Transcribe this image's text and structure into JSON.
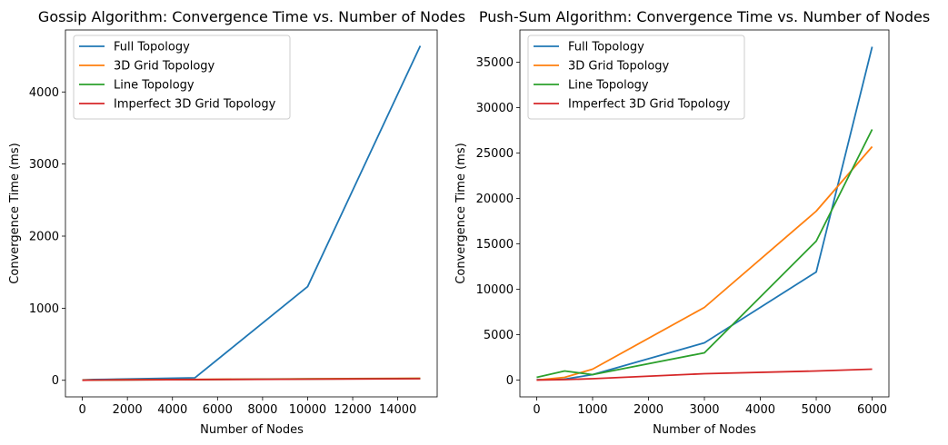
{
  "chart_data": [
    {
      "type": "line",
      "title": "Gossip Algorithm: Convergence Time vs. Number of Nodes",
      "xlabel": "Number of Nodes",
      "ylabel": "Convergence Time (ms)",
      "xlim": [
        -750,
        15750
      ],
      "ylim": [
        -230,
        4860
      ],
      "xticks": [
        0,
        2000,
        4000,
        6000,
        8000,
        10000,
        12000,
        14000
      ],
      "yticks": [
        0,
        1000,
        2000,
        3000,
        4000
      ],
      "grid": false,
      "legend_position": "top-left",
      "series": [
        {
          "name": "Full Topology",
          "color": "#1f77b4",
          "x": [
            0,
            500,
            1000,
            5000,
            10000,
            15000
          ],
          "y": [
            5,
            10,
            12,
            35,
            1300,
            4640
          ]
        },
        {
          "name": "3D Grid Topology",
          "color": "#ff7f0e",
          "x": [
            0,
            500,
            1000,
            5000,
            10000,
            15000
          ],
          "y": [
            2,
            4,
            5,
            12,
            20,
            28
          ]
        },
        {
          "name": "Line Topology",
          "color": "#2ca02c",
          "x": [
            0,
            500,
            1000,
            5000,
            10000,
            15000
          ],
          "y": [
            2,
            3,
            5,
            10,
            18,
            25
          ]
        },
        {
          "name": "Imperfect 3D Grid Topology",
          "color": "#d62728",
          "x": [
            0,
            500,
            1000,
            5000,
            10000,
            15000
          ],
          "y": [
            1,
            3,
            5,
            10,
            16,
            22
          ]
        }
      ]
    },
    {
      "type": "line",
      "title": "Push-Sum Algorithm: Convergence Time vs. Number of Nodes",
      "xlabel": "Number of Nodes",
      "ylabel": "Convergence Time (ms)",
      "xlim": [
        -300,
        6300
      ],
      "ylim": [
        -1850,
        38550
      ],
      "xticks": [
        0,
        1000,
        2000,
        3000,
        4000,
        5000,
        6000
      ],
      "yticks": [
        0,
        5000,
        10000,
        15000,
        20000,
        25000,
        30000,
        35000
      ],
      "grid": false,
      "legend_position": "top-left",
      "series": [
        {
          "name": "Full Topology",
          "color": "#1f77b4",
          "x": [
            0,
            500,
            1000,
            3000,
            5000,
            6000
          ],
          "y": [
            50,
            100,
            600,
            4100,
            11900,
            36700
          ]
        },
        {
          "name": "3D Grid Topology",
          "color": "#ff7f0e",
          "x": [
            0,
            500,
            1000,
            3000,
            5000,
            6000
          ],
          "y": [
            0,
            300,
            1200,
            8000,
            18600,
            25700
          ]
        },
        {
          "name": "Line Topology",
          "color": "#2ca02c",
          "x": [
            0,
            500,
            1000,
            3000,
            5000,
            6000
          ],
          "y": [
            300,
            1000,
            600,
            3000,
            15300,
            27600
          ]
        },
        {
          "name": "Imperfect 3D Grid Topology",
          "color": "#d62728",
          "x": [
            0,
            500,
            1000,
            3000,
            5000,
            6000
          ],
          "y": [
            0,
            50,
            150,
            700,
            1000,
            1200
          ]
        }
      ]
    }
  ]
}
